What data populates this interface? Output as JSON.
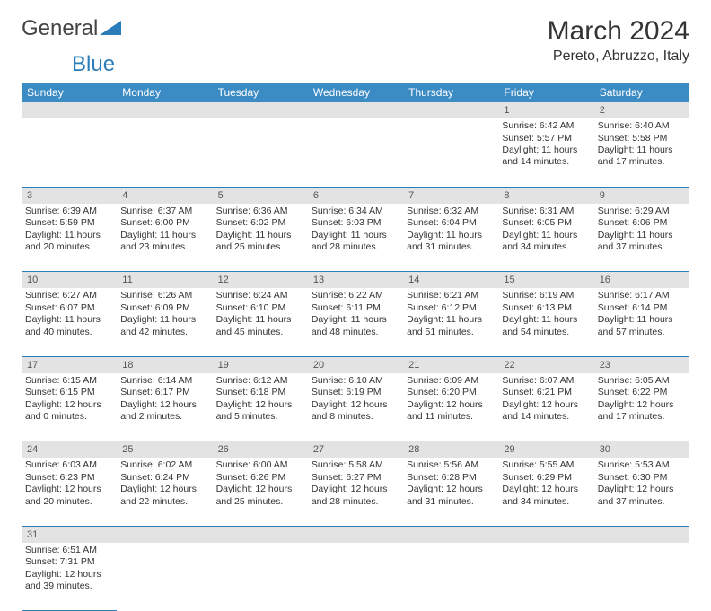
{
  "brand": {
    "part1": "General",
    "part2": "Blue"
  },
  "title": "March 2024",
  "location": "Pereto, Abruzzo, Italy",
  "colors": {
    "header_bg": "#3b8bc4",
    "header_text": "#ffffff",
    "daynum_bg": "#e3e3e3",
    "row_divider": "#2a7db8",
    "text": "#333333",
    "logo_blue": "#2a7db8"
  },
  "weekdays": [
    "Sunday",
    "Monday",
    "Tuesday",
    "Wednesday",
    "Thursday",
    "Friday",
    "Saturday"
  ],
  "weeks": [
    [
      null,
      null,
      null,
      null,
      null,
      {
        "n": "1",
        "sunrise": "6:42 AM",
        "sunset": "5:57 PM",
        "daylight": "11 hours and 14 minutes."
      },
      {
        "n": "2",
        "sunrise": "6:40 AM",
        "sunset": "5:58 PM",
        "daylight": "11 hours and 17 minutes."
      }
    ],
    [
      {
        "n": "3",
        "sunrise": "6:39 AM",
        "sunset": "5:59 PM",
        "daylight": "11 hours and 20 minutes."
      },
      {
        "n": "4",
        "sunrise": "6:37 AM",
        "sunset": "6:00 PM",
        "daylight": "11 hours and 23 minutes."
      },
      {
        "n": "5",
        "sunrise": "6:36 AM",
        "sunset": "6:02 PM",
        "daylight": "11 hours and 25 minutes."
      },
      {
        "n": "6",
        "sunrise": "6:34 AM",
        "sunset": "6:03 PM",
        "daylight": "11 hours and 28 minutes."
      },
      {
        "n": "7",
        "sunrise": "6:32 AM",
        "sunset": "6:04 PM",
        "daylight": "11 hours and 31 minutes."
      },
      {
        "n": "8",
        "sunrise": "6:31 AM",
        "sunset": "6:05 PM",
        "daylight": "11 hours and 34 minutes."
      },
      {
        "n": "9",
        "sunrise": "6:29 AM",
        "sunset": "6:06 PM",
        "daylight": "11 hours and 37 minutes."
      }
    ],
    [
      {
        "n": "10",
        "sunrise": "6:27 AM",
        "sunset": "6:07 PM",
        "daylight": "11 hours and 40 minutes."
      },
      {
        "n": "11",
        "sunrise": "6:26 AM",
        "sunset": "6:09 PM",
        "daylight": "11 hours and 42 minutes."
      },
      {
        "n": "12",
        "sunrise": "6:24 AM",
        "sunset": "6:10 PM",
        "daylight": "11 hours and 45 minutes."
      },
      {
        "n": "13",
        "sunrise": "6:22 AM",
        "sunset": "6:11 PM",
        "daylight": "11 hours and 48 minutes."
      },
      {
        "n": "14",
        "sunrise": "6:21 AM",
        "sunset": "6:12 PM",
        "daylight": "11 hours and 51 minutes."
      },
      {
        "n": "15",
        "sunrise": "6:19 AM",
        "sunset": "6:13 PM",
        "daylight": "11 hours and 54 minutes."
      },
      {
        "n": "16",
        "sunrise": "6:17 AM",
        "sunset": "6:14 PM",
        "daylight": "11 hours and 57 minutes."
      }
    ],
    [
      {
        "n": "17",
        "sunrise": "6:15 AM",
        "sunset": "6:15 PM",
        "daylight": "12 hours and 0 minutes."
      },
      {
        "n": "18",
        "sunrise": "6:14 AM",
        "sunset": "6:17 PM",
        "daylight": "12 hours and 2 minutes."
      },
      {
        "n": "19",
        "sunrise": "6:12 AM",
        "sunset": "6:18 PM",
        "daylight": "12 hours and 5 minutes."
      },
      {
        "n": "20",
        "sunrise": "6:10 AM",
        "sunset": "6:19 PM",
        "daylight": "12 hours and 8 minutes."
      },
      {
        "n": "21",
        "sunrise": "6:09 AM",
        "sunset": "6:20 PM",
        "daylight": "12 hours and 11 minutes."
      },
      {
        "n": "22",
        "sunrise": "6:07 AM",
        "sunset": "6:21 PM",
        "daylight": "12 hours and 14 minutes."
      },
      {
        "n": "23",
        "sunrise": "6:05 AM",
        "sunset": "6:22 PM",
        "daylight": "12 hours and 17 minutes."
      }
    ],
    [
      {
        "n": "24",
        "sunrise": "6:03 AM",
        "sunset": "6:23 PM",
        "daylight": "12 hours and 20 minutes."
      },
      {
        "n": "25",
        "sunrise": "6:02 AM",
        "sunset": "6:24 PM",
        "daylight": "12 hours and 22 minutes."
      },
      {
        "n": "26",
        "sunrise": "6:00 AM",
        "sunset": "6:26 PM",
        "daylight": "12 hours and 25 minutes."
      },
      {
        "n": "27",
        "sunrise": "5:58 AM",
        "sunset": "6:27 PM",
        "daylight": "12 hours and 28 minutes."
      },
      {
        "n": "28",
        "sunrise": "5:56 AM",
        "sunset": "6:28 PM",
        "daylight": "12 hours and 31 minutes."
      },
      {
        "n": "29",
        "sunrise": "5:55 AM",
        "sunset": "6:29 PM",
        "daylight": "12 hours and 34 minutes."
      },
      {
        "n": "30",
        "sunrise": "5:53 AM",
        "sunset": "6:30 PM",
        "daylight": "12 hours and 37 minutes."
      }
    ],
    [
      {
        "n": "31",
        "sunrise": "6:51 AM",
        "sunset": "7:31 PM",
        "daylight": "12 hours and 39 minutes."
      },
      null,
      null,
      null,
      null,
      null,
      null
    ]
  ],
  "labels": {
    "sunrise": "Sunrise:",
    "sunset": "Sunset:",
    "daylight": "Daylight:"
  }
}
